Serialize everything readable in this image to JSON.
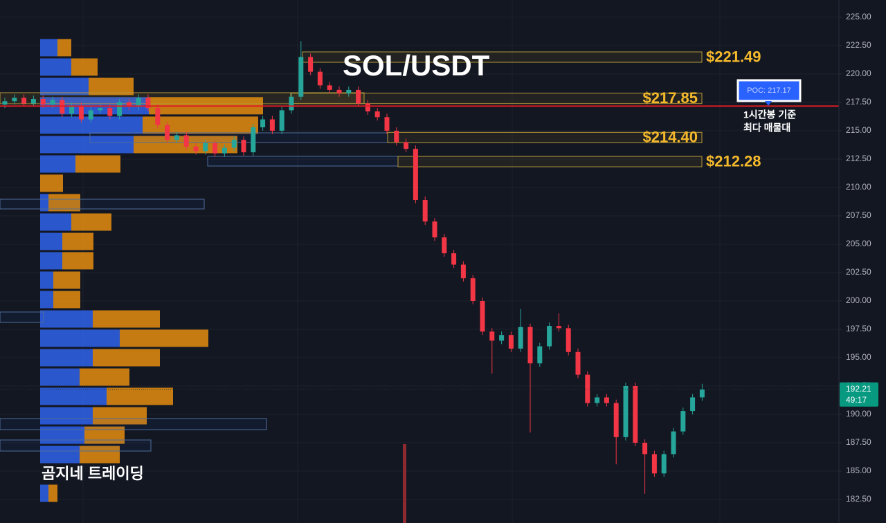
{
  "chart_data": {
    "type": "candlestick",
    "title": "SOL/USDT",
    "watermark": "곰지네 트레이딩",
    "ylim": [
      180.43,
      226.52
    ],
    "yticks": [
      {
        "value": 182.5,
        "label": "182.50"
      },
      {
        "value": 185,
        "label": "185.00"
      },
      {
        "value": 187.5,
        "label": "187.50"
      },
      {
        "value": 190,
        "label": "190.00"
      },
      {
        "value": 192.5,
        "label": "192.50"
      },
      {
        "value": 195,
        "label": "195.00"
      },
      {
        "value": 197.5,
        "label": "197.50"
      },
      {
        "value": 200,
        "label": "200.00"
      },
      {
        "value": 202.5,
        "label": "202.50"
      },
      {
        "value": 205,
        "label": "205.00"
      },
      {
        "value": 207.5,
        "label": "207.50"
      },
      {
        "value": 210,
        "label": "210.00"
      },
      {
        "value": 212.5,
        "label": "212.50"
      },
      {
        "value": 215,
        "label": "215.00"
      },
      {
        "value": 217.5,
        "label": "217.50"
      },
      {
        "value": 220,
        "label": "220.00"
      },
      {
        "value": 222.5,
        "label": "222.50"
      },
      {
        "value": 225,
        "label": "225.00"
      }
    ],
    "grid": true,
    "up_color": "#26a69a",
    "down_color": "#f23645",
    "open": [
      217.3,
      217.6,
      217.9,
      217.4,
      217.8,
      217.3,
      217.7,
      216.5,
      217.2,
      216.0,
      216.8,
      217.0,
      216.3,
      217.5,
      217.1,
      217.9,
      217.0,
      215.5,
      214.2,
      214.6,
      213.6,
      213.2,
      213.9,
      213.0,
      213.5,
      214.2,
      213.1,
      215.3,
      216.0,
      215.0,
      216.8,
      218.0,
      221.5,
      220.2,
      219.0,
      218.6,
      218.3,
      218.6,
      217.4,
      216.7,
      216.2,
      215.0,
      214.0,
      213.4,
      208.9,
      207.0,
      205.6,
      204.2,
      203.2,
      202.0,
      200.0,
      197.3,
      196.5,
      197.0,
      195.8,
      197.7,
      194.5,
      196.0,
      197.8,
      197.6,
      195.5,
      193.5,
      191.0,
      191.5,
      191.0,
      188.0,
      192.5,
      187.5,
      186.5,
      184.8,
      186.5,
      188.5,
      190.3,
      191.5
    ],
    "high": [
      217.9,
      218.2,
      218.2,
      218.1,
      218.1,
      218.0,
      218.0,
      217.5,
      217.5,
      217.1,
      217.3,
      217.3,
      217.8,
      217.8,
      218.2,
      218.2,
      217.3,
      215.8,
      214.9,
      214.9,
      213.9,
      214.2,
      214.2,
      213.8,
      214.5,
      214.5,
      215.6,
      216.3,
      216.3,
      217.1,
      218.3,
      222.9,
      221.8,
      220.5,
      219.3,
      218.9,
      218.9,
      218.9,
      217.7,
      217.0,
      216.5,
      215.3,
      214.3,
      213.7,
      209.2,
      207.3,
      205.9,
      204.5,
      203.5,
      202.3,
      200.3,
      197.6,
      197.3,
      197.3,
      199.3,
      198.0,
      196.3,
      198.1,
      198.9,
      197.9,
      195.8,
      193.8,
      191.8,
      191.8,
      191.3,
      192.8,
      192.8,
      187.8,
      186.8,
      186.8,
      188.8,
      190.6,
      191.8,
      192.7
    ],
    "low": [
      217.0,
      217.3,
      217.1,
      217.1,
      217.0,
      217.0,
      216.2,
      216.2,
      215.7,
      215.7,
      216.5,
      216.0,
      216.0,
      216.8,
      216.8,
      216.7,
      215.2,
      213.9,
      213.9,
      213.3,
      212.9,
      212.9,
      212.7,
      212.7,
      213.2,
      212.8,
      212.8,
      215.0,
      214.7,
      214.7,
      216.5,
      217.7,
      219.9,
      218.7,
      218.3,
      218.0,
      218.0,
      217.1,
      216.4,
      215.9,
      214.7,
      213.7,
      213.1,
      208.6,
      206.7,
      205.3,
      203.9,
      202.9,
      201.7,
      199.7,
      197.0,
      193.6,
      196.2,
      195.5,
      195.5,
      188.4,
      194.2,
      195.7,
      197.3,
      195.2,
      193.2,
      190.7,
      190.7,
      190.7,
      185.6,
      187.7,
      187.2,
      183.0,
      184.5,
      184.5,
      186.2,
      188.2,
      190.0,
      191.2
    ],
    "close": [
      217.6,
      217.9,
      217.4,
      217.8,
      217.3,
      217.7,
      216.5,
      217.2,
      216.0,
      216.8,
      217.0,
      216.3,
      217.5,
      217.1,
      217.9,
      217.0,
      215.5,
      214.2,
      214.6,
      213.6,
      213.2,
      213.9,
      213.0,
      213.5,
      214.2,
      213.1,
      215.3,
      216.0,
      215.0,
      216.8,
      218.0,
      221.5,
      220.2,
      219.0,
      218.6,
      218.3,
      218.6,
      217.4,
      216.7,
      216.2,
      215.0,
      214.0,
      213.4,
      208.9,
      207.0,
      205.6,
      204.2,
      203.2,
      202.0,
      200.0,
      197.3,
      196.5,
      197.0,
      195.8,
      197.7,
      194.5,
      196.0,
      197.8,
      197.6,
      195.5,
      193.5,
      191.0,
      191.5,
      191.0,
      188.0,
      192.5,
      187.5,
      186.5,
      184.8,
      186.5,
      188.5,
      190.3,
      191.5,
      192.2
    ],
    "volume_profile": {
      "levels": [
        222.32,
        220.61,
        218.9,
        217.2,
        215.49,
        213.78,
        212.07,
        210.37,
        208.66,
        206.95,
        205.24,
        203.54,
        201.83,
        200.12,
        198.41,
        196.71,
        195.0,
        193.29,
        191.59,
        189.88,
        188.17,
        186.46,
        183.05
      ],
      "series": [
        {
          "color": "#2f5ee0",
          "values": [
            25,
            45,
            70,
            157,
            148,
            135,
            51,
            0,
            12,
            45,
            32,
            32,
            19,
            19,
            76,
            115,
            76,
            57,
            96,
            76,
            64,
            57,
            12
          ]
        },
        {
          "color": "#d9860f",
          "values": [
            20,
            38,
            65,
            165,
            167,
            150,
            65,
            33,
            46,
            58,
            45,
            45,
            39,
            39,
            97,
            128,
            97,
            72,
            96,
            78,
            58,
            58,
            13
          ]
        }
      ]
    },
    "zones": [
      {
        "value": 221.49,
        "label": "$221.49"
      },
      {
        "value": 217.85,
        "label": "$217.85"
      },
      {
        "value": 214.4,
        "label": "$214.40"
      },
      {
        "value": 212.28,
        "label": "$212.28"
      }
    ],
    "poc": {
      "value": 217.17,
      "label": "POC: 217.17",
      "note": [
        "1시간봉 기준",
        "최다 매물대"
      ]
    },
    "last": {
      "value": 192.21,
      "countdown": "49:17",
      "color": "#089981"
    }
  }
}
